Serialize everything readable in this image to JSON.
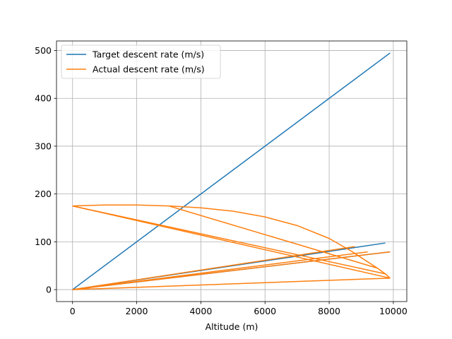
{
  "chart_data": {
    "type": "line",
    "title": "",
    "xlabel": "Altitude (m)",
    "ylabel": "",
    "xlim": [
      -500,
      10420
    ],
    "ylim": [
      -25,
      520
    ],
    "xticks": [
      0,
      2000,
      4000,
      6000,
      8000,
      10000
    ],
    "yticks": [
      0,
      100,
      200,
      300,
      400,
      500
    ],
    "xtick_labels": [
      "0",
      "2000",
      "4000",
      "6000",
      "8000",
      "10000"
    ],
    "ytick_labels": [
      "0",
      "100",
      "200",
      "300",
      "400",
      "500"
    ],
    "grid": true,
    "legend": "upper-left",
    "series": [
      {
        "name": "Target descent rate (m/s)",
        "color": "#1f77b4",
        "segments": [
          [
            [
              0,
              0
            ],
            [
              9900,
              495
            ]
          ],
          [
            [
              0,
              0
            ],
            [
              9900,
              79
            ]
          ],
          [
            [
              0,
              0
            ],
            [
              9750,
              97.5
            ]
          ]
        ]
      },
      {
        "name": "Actual descent rate (m/s)",
        "color": "#ff7f0e",
        "segments": [
          [
            [
              0,
              175
            ],
            [
              1000,
              177
            ],
            [
              2000,
              177
            ],
            [
              3000,
              175
            ],
            [
              4000,
              171
            ],
            [
              5000,
              164
            ],
            [
              6000,
              152
            ],
            [
              7000,
              134
            ],
            [
              8000,
              107
            ],
            [
              8700,
              80
            ],
            [
              9200,
              58
            ],
            [
              9500,
              45
            ],
            [
              9750,
              33
            ],
            [
              9900,
              24
            ]
          ],
          [
            [
              0,
              175
            ],
            [
              9750,
              33
            ]
          ],
          [
            [
              0,
              175
            ],
            [
              9900,
              24
            ]
          ],
          [
            [
              3000,
              175
            ],
            [
              9500,
              45
            ]
          ],
          [
            [
              0,
              0
            ],
            [
              9900,
              24
            ]
          ],
          [
            [
              0,
              0
            ],
            [
              9900,
              79
            ]
          ],
          [
            [
              0,
              0
            ],
            [
              8800,
              90
            ]
          ],
          [
            [
              0,
              0
            ],
            [
              9200,
              79
            ]
          ]
        ]
      }
    ]
  }
}
